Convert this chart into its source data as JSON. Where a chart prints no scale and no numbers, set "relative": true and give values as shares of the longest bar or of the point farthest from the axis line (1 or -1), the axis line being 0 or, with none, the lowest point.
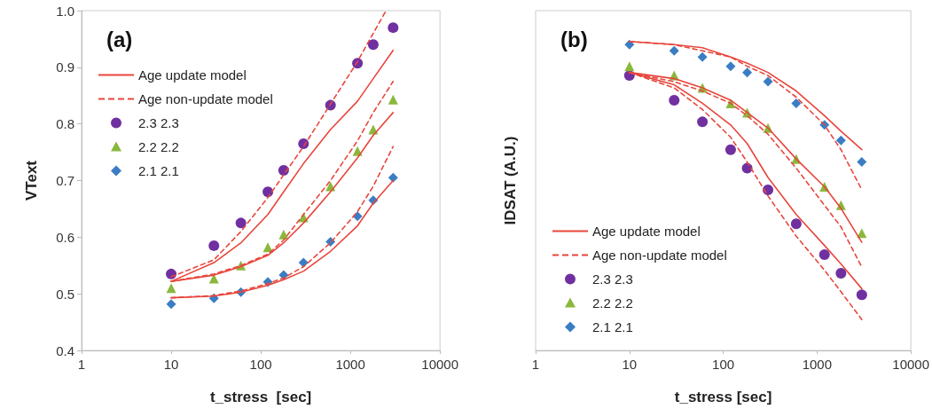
{
  "chart_data": [
    {
      "type": "line",
      "xlabel": "t_stress  [sec]",
      "ylabel": "VText",
      "annotations": [
        "(a)"
      ],
      "log": "x",
      "xlim": [
        1,
        10000
      ],
      "xticks": [
        1,
        10,
        100,
        1000,
        10000
      ],
      "ylim": [
        0.4,
        1.0
      ],
      "yticks": [
        0.4,
        0.5,
        0.6,
        0.7,
        0.8,
        0.9,
        {
          "value": 1.0,
          "label": "1.0"
        }
      ],
      "grid": false,
      "legend": "top left",
      "marker": "none",
      "series": [
        {
          "name": "Age update model",
          "type": "line",
          "line_style": "solid",
          "color": "#e8463c",
          "x": [
            10,
            30,
            60,
            120,
            180,
            300,
            600,
            1200,
            1800,
            3000
          ],
          "values": [
            0.522,
            0.555,
            0.59,
            0.64,
            0.68,
            0.73,
            0.79,
            0.84,
            0.88,
            0.93
          ]
        },
        {
          "name": "Age non-update model",
          "type": "line",
          "line_style": "dashed",
          "color": "#e8463c",
          "x": [
            10,
            30,
            60,
            120,
            180,
            300,
            600,
            1200,
            1800,
            2500
          ],
          "values": [
            0.53,
            0.56,
            0.61,
            0.67,
            0.71,
            0.76,
            0.835,
            0.91,
            0.96,
            1.0
          ]
        },
        {
          "type": "line",
          "line_style": "solid",
          "color": "#e8463c",
          "x": [
            10,
            30,
            60,
            120,
            180,
            300,
            600,
            1200,
            1800,
            3000
          ],
          "values": [
            0.522,
            0.533,
            0.548,
            0.568,
            0.59,
            0.625,
            0.68,
            0.74,
            0.78,
            0.82
          ]
        },
        {
          "type": "line",
          "line_style": "dashed",
          "color": "#e8463c",
          "x": [
            10,
            30,
            60,
            120,
            180,
            300,
            600,
            1200,
            1800,
            3000
          ],
          "values": [
            0.522,
            0.535,
            0.55,
            0.57,
            0.595,
            0.64,
            0.7,
            0.77,
            0.82,
            0.875
          ]
        },
        {
          "type": "line",
          "line_style": "solid",
          "color": "#e8463c",
          "x": [
            10,
            30,
            60,
            120,
            180,
            300,
            600,
            1200,
            1800,
            3000
          ],
          "values": [
            0.493,
            0.496,
            0.503,
            0.515,
            0.525,
            0.54,
            0.575,
            0.62,
            0.66,
            0.7
          ]
        },
        {
          "type": "line",
          "line_style": "dashed",
          "color": "#e8463c",
          "x": [
            10,
            30,
            60,
            120,
            180,
            300,
            600,
            1200,
            1800,
            3000
          ],
          "values": [
            0.493,
            0.497,
            0.505,
            0.518,
            0.528,
            0.548,
            0.59,
            0.645,
            0.69,
            0.76
          ]
        },
        {
          "name": "2.3 2.3",
          "type": "scatter",
          "marker": "circle",
          "color": "#7030a0",
          "x": [
            10,
            30,
            60,
            120,
            180,
            300,
            600,
            1200,
            1800,
            3000
          ],
          "values": [
            0.535,
            0.585,
            0.625,
            0.68,
            0.718,
            0.765,
            0.833,
            0.907,
            0.94,
            0.97
          ]
        },
        {
          "name": "2.2 2.2",
          "type": "scatter",
          "marker": "triangle",
          "color": "#8ab83c",
          "x": [
            10,
            30,
            60,
            120,
            180,
            300,
            600,
            1200,
            1800,
            3000
          ],
          "values": [
            0.51,
            0.527,
            0.55,
            0.582,
            0.605,
            0.635,
            0.69,
            0.752,
            0.79,
            0.843
          ]
        },
        {
          "name": "2.1 2.1",
          "type": "scatter",
          "marker": "diamond",
          "color": "#3b7dc4",
          "x": [
            10,
            30,
            60,
            120,
            180,
            300,
            600,
            1200,
            1800,
            3000
          ],
          "values": [
            0.482,
            0.492,
            0.503,
            0.521,
            0.533,
            0.555,
            0.592,
            0.637,
            0.665,
            0.705
          ]
        }
      ]
    },
    {
      "type": "line",
      "xlabel": "t_stress [sec]",
      "ylabel": "IDSAT (A.U.)",
      "annotations": [
        "(b)"
      ],
      "relative": true,
      "tick_labels": "x",
      "log": "x",
      "xlim": [
        1,
        10000
      ],
      "xticks": [
        1,
        10,
        100,
        1000,
        10000
      ],
      "grid": false,
      "legend": "bottom left",
      "marker": "none",
      "series": [
        {
          "name": "Age update model",
          "type": "line",
          "line_style": "solid",
          "color": "#e8463c",
          "x": [
            10,
            30,
            60,
            120,
            180,
            300,
            600,
            1200,
            1800,
            3000
          ],
          "values": [
            1.0,
            0.99,
            0.98,
            0.95,
            0.93,
            0.9,
            0.84,
            0.76,
            0.71,
            0.65
          ]
        },
        {
          "name": "Age non-update model",
          "type": "line",
          "line_style": "dashed",
          "color": "#e8463c",
          "x": [
            10,
            30,
            60,
            120,
            180,
            300,
            600,
            1200,
            1800,
            3000
          ],
          "values": [
            1.0,
            0.99,
            0.97,
            0.95,
            0.92,
            0.89,
            0.82,
            0.73,
            0.65,
            0.52
          ]
        },
        {
          "type": "line",
          "line_style": "solid",
          "color": "#e8463c",
          "x": [
            10,
            30,
            60,
            120,
            180,
            300,
            600,
            1200,
            1800,
            3000
          ],
          "values": [
            0.9,
            0.88,
            0.85,
            0.81,
            0.77,
            0.72,
            0.62,
            0.53,
            0.46,
            0.35
          ]
        },
        {
          "type": "line",
          "line_style": "dashed",
          "color": "#e8463c",
          "x": [
            10,
            30,
            60,
            120,
            180,
            300,
            600,
            1200,
            1800,
            3000
          ],
          "values": [
            0.9,
            0.87,
            0.84,
            0.8,
            0.76,
            0.7,
            0.59,
            0.47,
            0.4,
            0.27
          ]
        },
        {
          "type": "line",
          "line_style": "solid",
          "color": "#e8463c",
          "x": [
            10,
            30,
            60,
            120,
            180,
            300,
            600,
            1200,
            1800,
            3000
          ],
          "values": [
            0.9,
            0.86,
            0.8,
            0.73,
            0.67,
            0.56,
            0.44,
            0.34,
            0.28,
            0.2
          ]
        },
        {
          "type": "line",
          "line_style": "dashed",
          "color": "#e8463c",
          "x": [
            10,
            30,
            60,
            120,
            180,
            300,
            600,
            1200,
            1800,
            3000
          ],
          "values": [
            0.9,
            0.85,
            0.78,
            0.69,
            0.61,
            0.5,
            0.37,
            0.26,
            0.19,
            0.1
          ]
        },
        {
          "name": "2.3 2.3",
          "type": "scatter",
          "marker": "circle",
          "color": "#7030a0",
          "x": [
            10,
            30,
            60,
            120,
            180,
            300,
            600,
            1200,
            1800,
            3000
          ],
          "values": [
            0.89,
            0.81,
            0.74,
            0.65,
            0.59,
            0.52,
            0.41,
            0.31,
            0.25,
            0.18
          ]
        },
        {
          "name": "2.2 2.2",
          "type": "scatter",
          "marker": "triangle",
          "color": "#8ab83c",
          "x": [
            10,
            30,
            60,
            120,
            180,
            300,
            600,
            1200,
            1800,
            3000
          ],
          "values": [
            0.92,
            0.89,
            0.85,
            0.8,
            0.77,
            0.72,
            0.62,
            0.53,
            0.47,
            0.38
          ]
        },
        {
          "name": "2.1 2.1",
          "type": "scatter",
          "marker": "diamond",
          "color": "#3b7dc4",
          "x": [
            10,
            30,
            60,
            120,
            180,
            300,
            600,
            1200,
            1800,
            3000
          ],
          "values": [
            0.99,
            0.97,
            0.95,
            0.92,
            0.9,
            0.87,
            0.8,
            0.73,
            0.68,
            0.61
          ]
        }
      ]
    }
  ]
}
